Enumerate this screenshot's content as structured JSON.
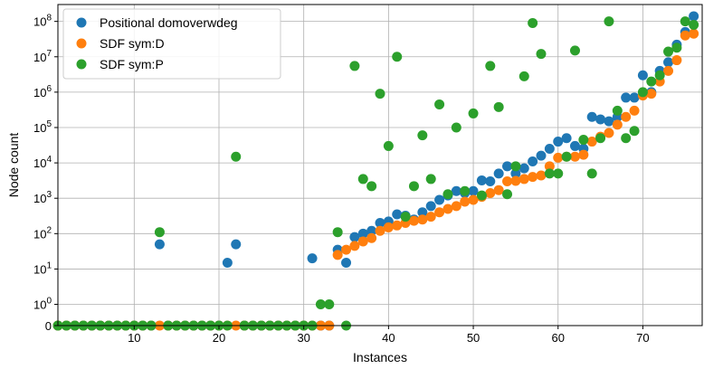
{
  "chart_data": {
    "type": "scatter",
    "title": "",
    "xlabel": "Instances",
    "ylabel": "Node count",
    "xlim": [
      1,
      77
    ],
    "x_ticks": [
      10,
      20,
      30,
      40,
      50,
      60,
      70
    ],
    "y_scale": "symlog",
    "y_ticks": [
      {
        "value": 0,
        "label": "0"
      },
      {
        "value": 1,
        "label": "10^0"
      },
      {
        "value": 10,
        "label": "10^1"
      },
      {
        "value": 100,
        "label": "10^2"
      },
      {
        "value": 1000,
        "label": "10^3"
      },
      {
        "value": 10000,
        "label": "10^4"
      },
      {
        "value": 100000,
        "label": "10^5"
      },
      {
        "value": 1000000,
        "label": "10^6"
      },
      {
        "value": 10000000,
        "label": "10^7"
      },
      {
        "value": 100000000,
        "label": "10^8"
      }
    ],
    "ylim": [
      0,
      300000000
    ],
    "grid": true,
    "legend_position": "top-left",
    "x": [
      1,
      2,
      3,
      4,
      5,
      6,
      7,
      8,
      9,
      10,
      11,
      12,
      13,
      14,
      15,
      16,
      17,
      18,
      19,
      20,
      21,
      22,
      23,
      24,
      25,
      26,
      27,
      28,
      29,
      30,
      31,
      32,
      33,
      34,
      35,
      36,
      37,
      38,
      39,
      40,
      41,
      42,
      43,
      44,
      45,
      46,
      47,
      48,
      49,
      50,
      51,
      52,
      53,
      54,
      55,
      56,
      57,
      58,
      59,
      60,
      61,
      62,
      63,
      64,
      65,
      66,
      67,
      68,
      69,
      70,
      71,
      72,
      73,
      74,
      75,
      76
    ],
    "series": [
      {
        "name": "Positional domoverwdeg",
        "color": "#1f77b4",
        "values": [
          0,
          0,
          0,
          0,
          0,
          0,
          0,
          0,
          0,
          0,
          0,
          0,
          50,
          0,
          0,
          0,
          0,
          0,
          0,
          0,
          15,
          50,
          0,
          0,
          0,
          0,
          0,
          0,
          0,
          0,
          20,
          0,
          0,
          35,
          15,
          80,
          100,
          120,
          200,
          220,
          350,
          320,
          250,
          400,
          600,
          900,
          1200,
          1600,
          1400,
          1600,
          3200,
          3000,
          5000,
          8000,
          5000,
          7000,
          11000,
          16000,
          25000,
          40000,
          50000,
          30000,
          25000,
          200000,
          170000,
          150000,
          200000,
          700000,
          700000,
          3000000,
          1000000,
          4000000,
          7000000,
          22000000,
          50000000,
          140000000
        ]
      },
      {
        "name": "SDF sym:D",
        "color": "#ff7f0e",
        "values": [
          0,
          0,
          0,
          0,
          0,
          0,
          0,
          0,
          0,
          0,
          0,
          0,
          0,
          0,
          0,
          0,
          0,
          0,
          0,
          0,
          0,
          0,
          0,
          0,
          0,
          0,
          0,
          0,
          0,
          0,
          0,
          0,
          0,
          25,
          35,
          45,
          60,
          75,
          120,
          150,
          170,
          200,
          230,
          250,
          300,
          400,
          500,
          600,
          800,
          900,
          1100,
          1400,
          1700,
          3000,
          3100,
          3500,
          4000,
          4400,
          8000,
          14000,
          15000,
          15000,
          17000,
          40000,
          55000,
          70000,
          120000,
          200000,
          300000,
          800000,
          900000,
          2000000,
          4000000,
          8000000,
          40000000,
          45000000
        ]
      },
      {
        "name": "SDF sym:P",
        "color": "#2ca02c",
        "values": [
          0,
          0,
          0,
          0,
          0,
          0,
          0,
          0,
          0,
          0,
          0,
          0,
          110,
          0,
          0,
          0,
          0,
          0,
          0,
          0,
          0,
          15000,
          0,
          0,
          0,
          0,
          0,
          0,
          0,
          0,
          0,
          1,
          1,
          110,
          0,
          5500000,
          3500,
          2200,
          900000,
          30000,
          10000000,
          300,
          2200,
          60000,
          3500,
          450000,
          1300,
          100000,
          1600,
          250000,
          1200,
          5500000,
          380000,
          1300,
          8000,
          2800000,
          90000000,
          12000000,
          5000,
          5000,
          15000,
          15000000,
          45000,
          5000,
          50000,
          100000000,
          300000,
          50000,
          80000,
          1000000,
          2000000,
          3000000,
          14000000,
          18000000,
          100000000,
          80000000
        ]
      }
    ]
  }
}
